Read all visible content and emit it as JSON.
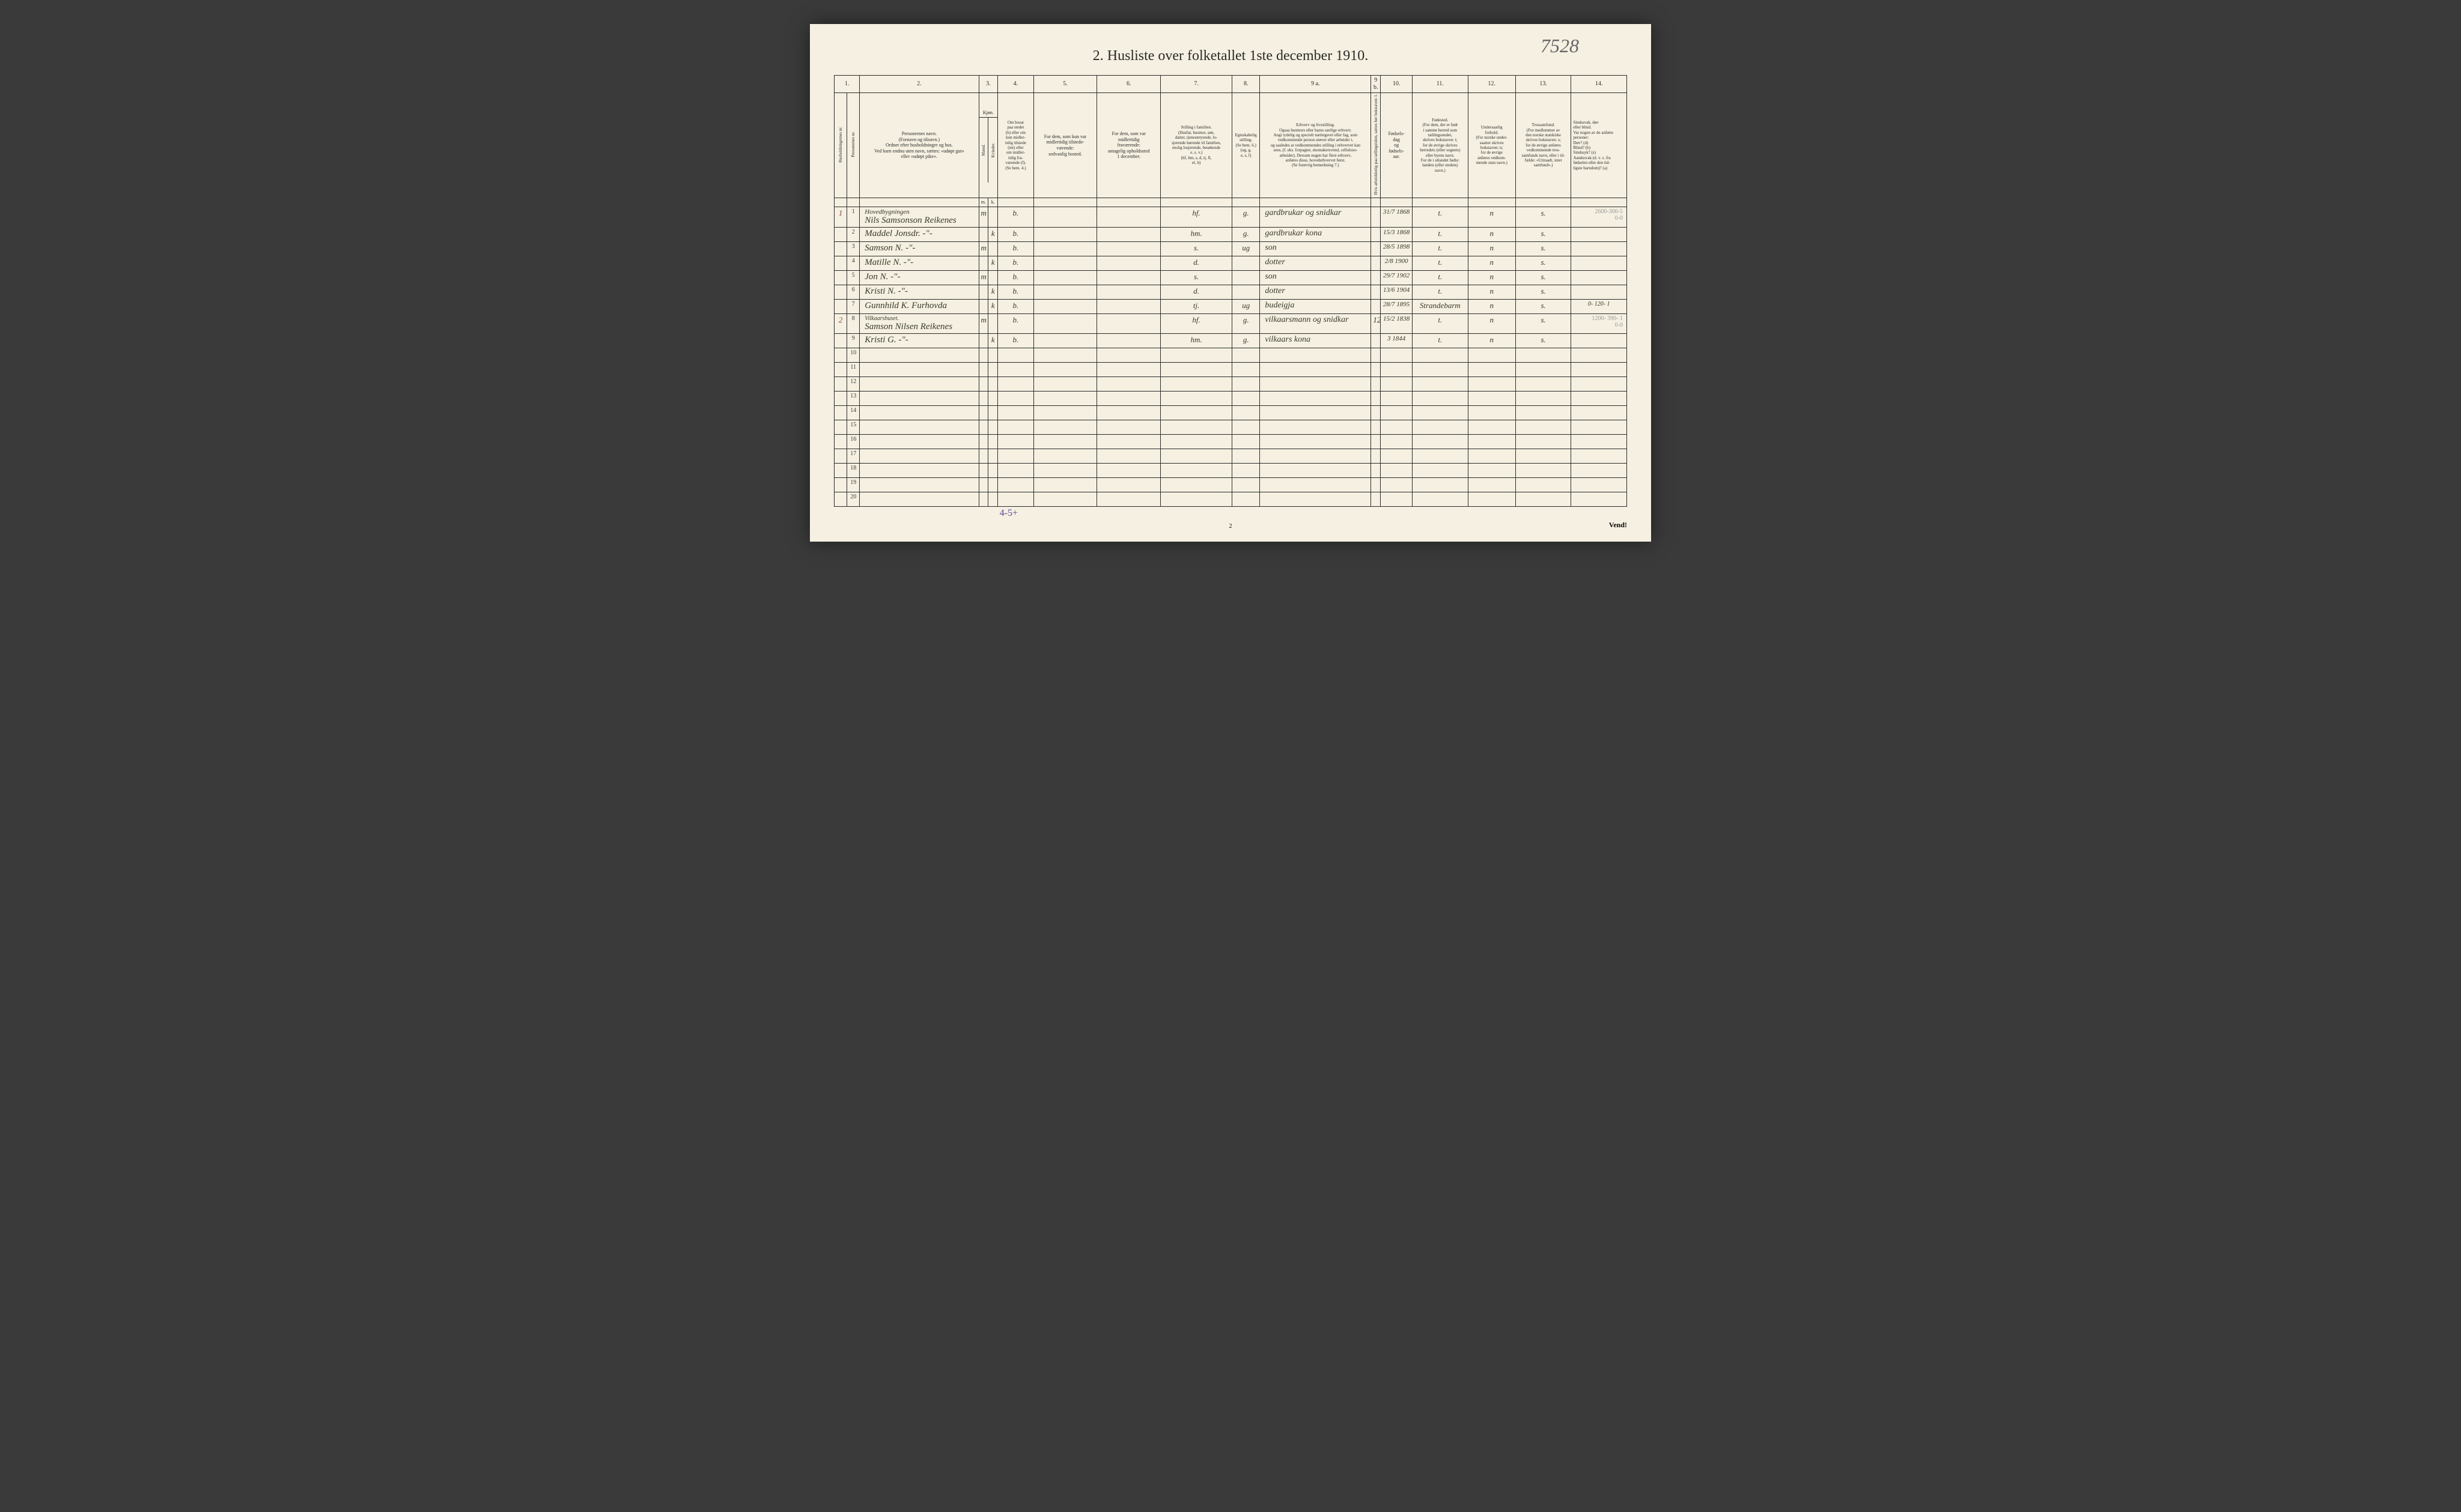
{
  "top_right_note": "7528",
  "title": "2.   Husliste over folketallet 1ste december 1910.",
  "col_nums": [
    "1.",
    "",
    "2.",
    "3.",
    "",
    "4.",
    "5.",
    "6.",
    "7.",
    "8.",
    "9 a.",
    "9 b.",
    "10.",
    "11.",
    "12.",
    "13.",
    "14."
  ],
  "headers": {
    "c1": "Husholdningernes nr.",
    "c1b": "Personernes nr.",
    "c2": "Personernes navn.\n(Fornavn og tilnavn.)\nOrdnet efter husholdninger og hus.\nVed barn endnu uten navn, sættes: «udøpt gut»\neller «udøpt pike».",
    "c3": "Kjøn.",
    "c3a": "Mænd.",
    "c3b": "Kvinder.",
    "c4": "Om bosat\npaa stedet\n(b) eller om\nkun midler-\ntidig tilstede\n(mt) eller\nom midler-\ntidig fra-\nværende (f).\n(Se bem. 4.)",
    "c5": "For dem, som kun var\nmidlertidig tilstede-\nværende:\nsedvanlig bosted.",
    "c6": "For dem, som var\nmidlertidig\nfraværende:\nantagelig opholdssted\n1 december.",
    "c7": "Stilling i familien.\n(Husfar, husmor, søn,\ndatter, tjenestetyende, lo-\nsjerende hørende til familien,\nenslig losjerende, besøkende\no. s. v.)\n(hf, hm, s, d, tj, fl,\nel, b)",
    "c8": "Egteskabelig\nstilling.\n(Se bem. 6.)\n(ug, g,\ne, s, f)",
    "c9a": "Erhverv og livsstilling.\nOgsaa husmors eller barns særlige erhverv.\nAngi tydelig og specielt næringsvei eller fag, som\nvedkommende person utøver eller arbeider i,\nog saaledes at vedkommendes stilling i erhvervet kan\nsees, (f. eks. forpagter, skomakersvend, celluloso-\narbeider). Dersom nogen har flere erhverv,\nanføres disse, hovederhvervet først.\n(Se forøvrig bemerkning 7.)",
    "c9b": "Hvis arbeidsledig\npaa tællingstiden, sættes\nher bokstaven: l.",
    "c10": "Fødsels-\ndag\nog\nfødsels-\naar.",
    "c11": "Fødested.\n(For dem, der er født\ni samme herred som\ntællingsstedet,\nskrives bokstaven: t;\nfor de øvrige skrives\nherredets (eller sognets)\neller byens navn.\nFor de i utlandet fødte:\nlandets (eller stedets)\nnavn.)",
    "c12": "Undersaatlig\nforhold.\n(For norske under-\nsaatter skrives\nbokstaven: n;\nfor de øvrige\nanføres vedkom-\nmende stats navn.)",
    "c13": "Trossamfund.\n(For medlemmer av\nden norske statskirke\nskrives bokstaven: s;\nfor de øvrige anføres\nvedkommende tros-\nsamfunds navn, eller i til-\nfælde: «Uttraadt, intet\nsamfund».)",
    "c14": "Sindssvak, døv\neller blind.\nVar nogen av de anførte\npersoner:\nDøv?         (d)\nBlind?       (b)\nSindssyk? (s)\nAandssvak (d. v. s. fra\nfødselen eller den tid-\nligste barndom)? (a)"
  },
  "subhead_row0": "Hovedbygningen",
  "rows": [
    {
      "hnr": "1",
      "pnr": "1",
      "name": "Nils Samsonson Reikenes",
      "m": "m",
      "k": "",
      "b": "b.",
      "c5": "",
      "c6": "",
      "c7": "hf.",
      "c8": "g.",
      "c9a": "gardbrukar og snidkar",
      "c9b": "",
      "c10": "31/7 1868",
      "c11": "t.",
      "c12": "n",
      "c13": "s.",
      "c14": "2600-300-5\n0-0",
      "c14pencil": true
    },
    {
      "hnr": "",
      "pnr": "2",
      "name": "Maddel Jonsdr.       -\"-",
      "m": "",
      "k": "k",
      "b": "b.",
      "c5": "",
      "c6": "",
      "c7": "hm.",
      "c8": "g.",
      "c9a": "gardbrukar kona",
      "c9b": "",
      "c10": "15/3 1868",
      "c11": "t.",
      "c12": "n",
      "c13": "s.",
      "c14": ""
    },
    {
      "hnr": "",
      "pnr": "3",
      "name": "Samson N.           -\"-",
      "m": "m",
      "k": "",
      "b": "b.",
      "c5": "",
      "c6": "",
      "c7": "s.",
      "c8": "ug",
      "c9a": "son",
      "c9b": "",
      "c10": "28/5 1898",
      "c11": "t.",
      "c12": "n",
      "c13": "s.",
      "c14": ""
    },
    {
      "hnr": "",
      "pnr": "4",
      "name": "Matille N.            -\"-",
      "m": "",
      "k": "k",
      "b": "b.",
      "c5": "",
      "c6": "",
      "c7": "d.",
      "c8": "",
      "c9a": "dotter",
      "c9b": "",
      "c10": "2/8 1900",
      "c11": "t.",
      "c12": "n",
      "c13": "s.",
      "c14": ""
    },
    {
      "hnr": "",
      "pnr": "5",
      "name": "Jon N.                 -\"-",
      "m": "m",
      "k": "",
      "b": "b.",
      "c5": "",
      "c6": "",
      "c7": "s.",
      "c8": "",
      "c9a": "son",
      "c9b": "",
      "c10": "29/7 1902",
      "c11": "t.",
      "c12": "n",
      "c13": "s.",
      "c14": ""
    },
    {
      "hnr": "",
      "pnr": "6",
      "name": "Kristi N.              -\"-",
      "m": "",
      "k": "k",
      "b": "b.",
      "c5": "",
      "c6": "",
      "c7": "d.",
      "c8": "",
      "c9a": "dotter",
      "c9b": "",
      "c10": "13/6 1904",
      "c11": "t.",
      "c12": "n",
      "c13": "s.",
      "c14": ""
    },
    {
      "hnr": "",
      "pnr": "7",
      "name": "Gunnhild K. Furhovda",
      "m": "",
      "k": "k",
      "b": "b.",
      "c5": "",
      "c6": "",
      "c7": "tj.",
      "c8": "ug",
      "c9a": "budeigja",
      "c9b": "",
      "c10": "28/7 1895",
      "c11": "Strandebarm",
      "c12": "n",
      "c13": "s.",
      "c14": "0- 120- 1"
    },
    {
      "hnr": "2",
      "pnr": "8",
      "name": "Vilkaarshuset.\nSamson Nilsen Reikenes",
      "m": "m",
      "k": "",
      "b": "b.",
      "c5": "",
      "c6": "",
      "c7": "hf.",
      "c8": "g.",
      "c9a": "vilkaarsmann og snidkar",
      "c9b": "12",
      "c10": "15/2 1838",
      "c11": "t.",
      "c12": "n",
      "c13": "s.",
      "c14": "1200- 390- 1\n0-0",
      "c14pencil": true
    },
    {
      "hnr": "",
      "pnr": "9",
      "name": "Kristi G.              -\"-",
      "m": "",
      "k": "k",
      "b": "b.",
      "c5": "",
      "c6": "",
      "c7": "hm.",
      "c8": "g.",
      "c9a": "vilkaars kona",
      "c9b": "",
      "c10": "3 1844",
      "c11": "t.",
      "c12": "n",
      "c13": "s.",
      "c14": ""
    }
  ],
  "empty_rows": [
    "10",
    "11",
    "12",
    "13",
    "14",
    "15",
    "16",
    "17",
    "18",
    "19",
    "20"
  ],
  "bottom_note": "4-5+",
  "page_num": "2",
  "vend": "Vend!",
  "colors": {
    "page_bg": "#f5f0e1",
    "border": "#2a2a2a",
    "hand_ink": "#3a3a2a",
    "pencil": "#999999",
    "purple_ink": "#5a4a9a"
  }
}
